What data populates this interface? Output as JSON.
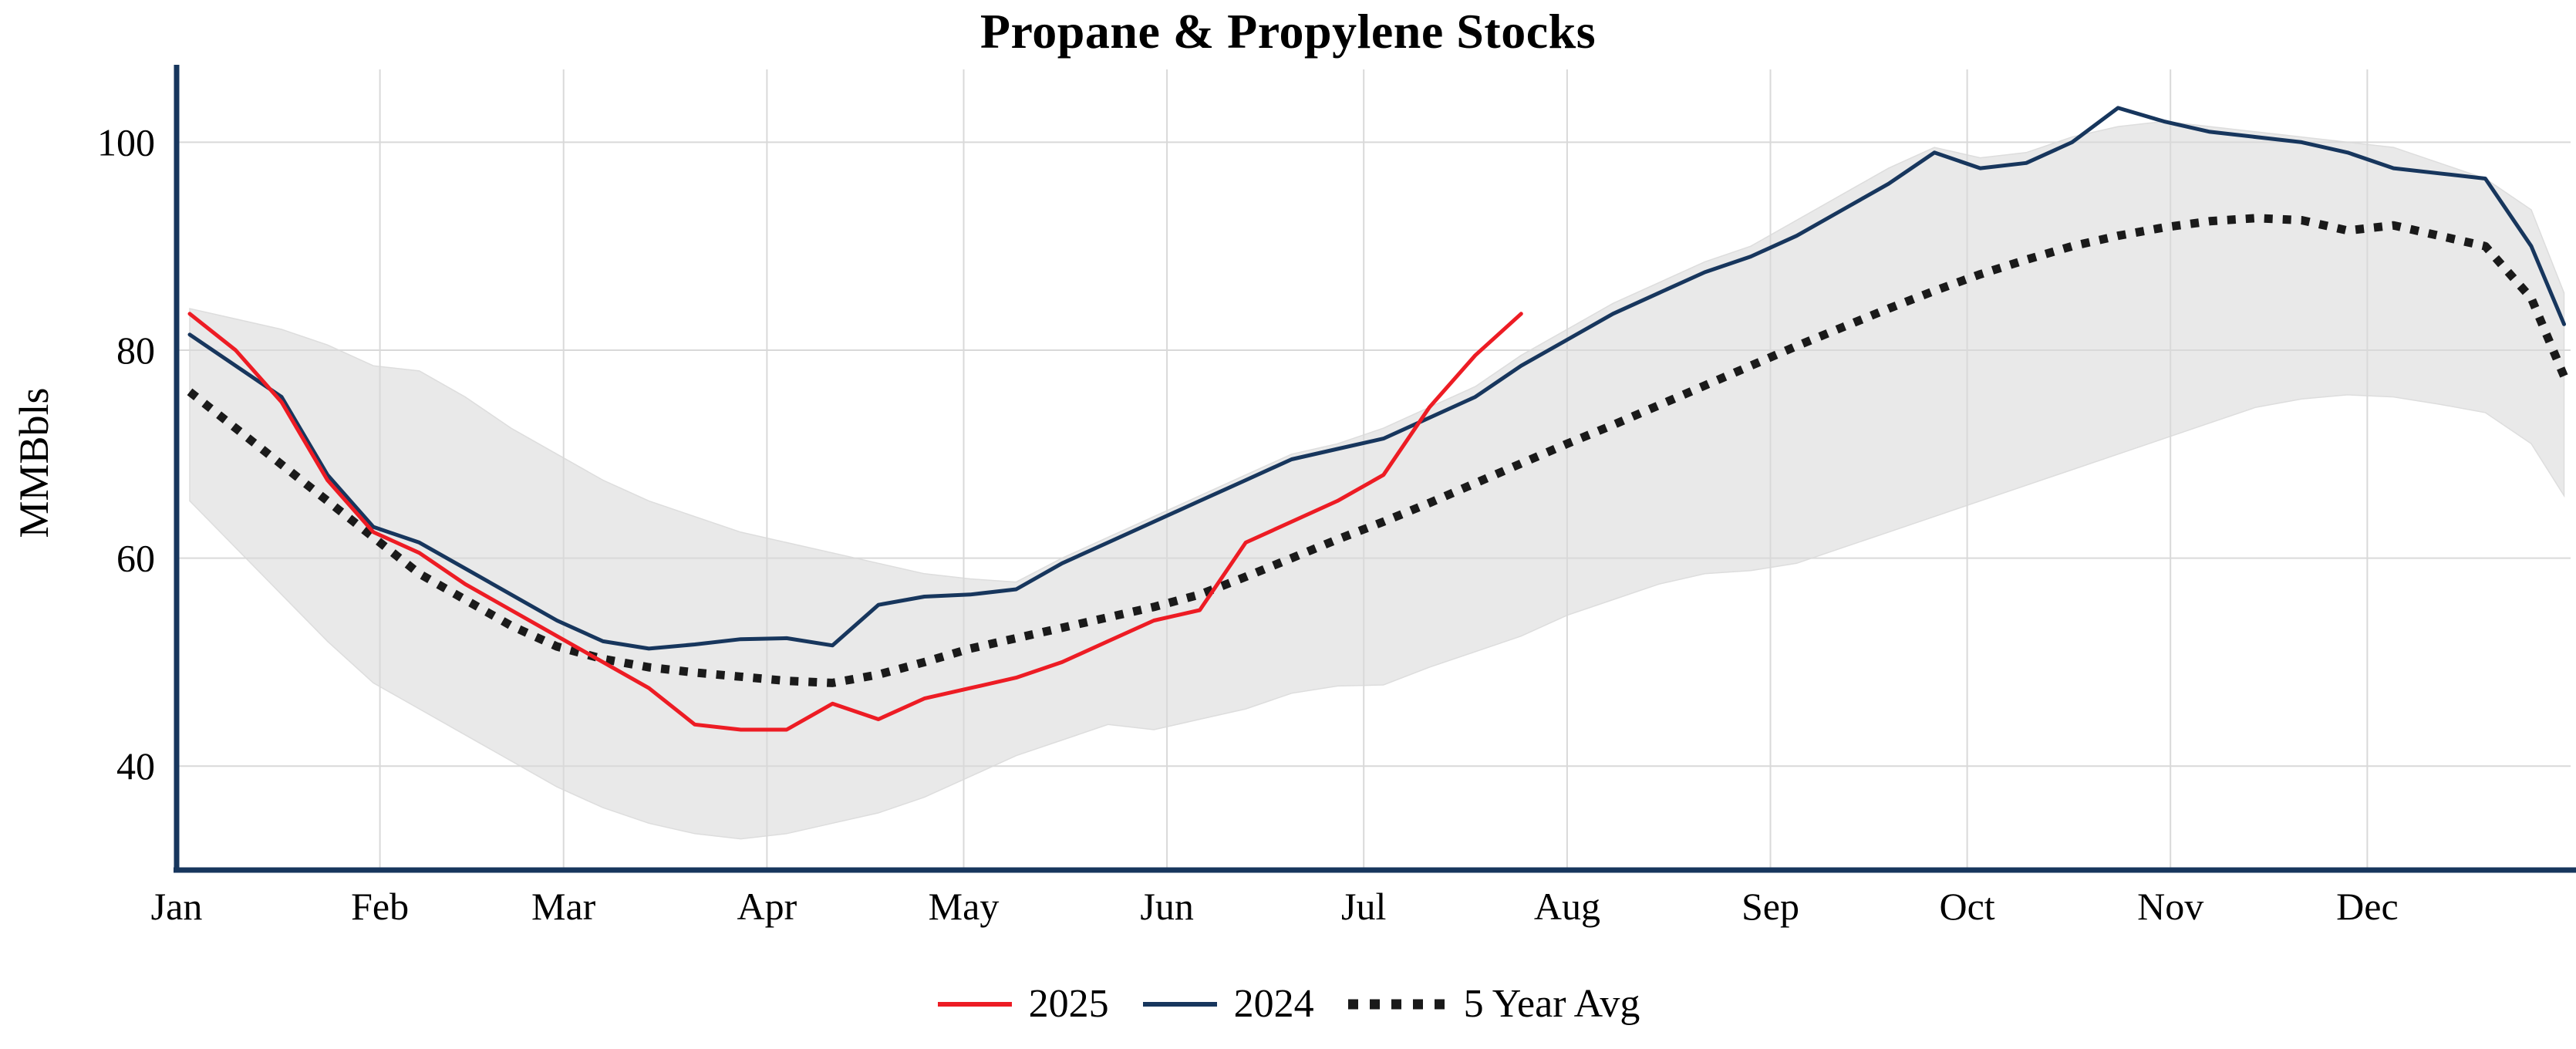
{
  "chart_data": {
    "type": "line",
    "title": "Propane & Propylene Stocks",
    "x_axis": {
      "tick_labels": [
        "Jan",
        "Feb",
        "Mar",
        "Apr",
        "May",
        "Jun",
        "Jul",
        "Aug",
        "Sep",
        "Oct",
        "Nov",
        "Dec"
      ],
      "tick_days": [
        1,
        32,
        60,
        91,
        121,
        152,
        182,
        213,
        244,
        274,
        305,
        335
      ],
      "start_day": 3,
      "step_days": 7,
      "xlim_days": [
        1,
        366
      ],
      "unit": "weekly data by day of year"
    },
    "y_axis": {
      "label": "MMBbls",
      "ticks": [
        40,
        60,
        80,
        100
      ],
      "ylim": [
        30,
        107
      ]
    },
    "grid": true,
    "legend_position": "bottom-center",
    "colors": {
      "axis": "#17365d",
      "grid": "#d9d9d9"
    },
    "band": {
      "fill": "#e9e9e9",
      "edge": "#dddddd",
      "upper": [
        84,
        83,
        82,
        80.5,
        78.5,
        78,
        75.5,
        72.5,
        70,
        67.5,
        65.5,
        64,
        62.5,
        61.5,
        60.5,
        59.5,
        58.5,
        58,
        57.7,
        60,
        62,
        64,
        66,
        68,
        70,
        71,
        72.5,
        74.5,
        76.5,
        79.5,
        82,
        84.5,
        86.5,
        88.5,
        90,
        92.5,
        95,
        97.5,
        99.5,
        98.5,
        99,
        100.5,
        101.5,
        102,
        101.5,
        101,
        100.5,
        100,
        99.5,
        98,
        96.5,
        93.5,
        85.5
      ],
      "lower": [
        65.5,
        61,
        56.5,
        52,
        48,
        45.5,
        43,
        40.5,
        38,
        36,
        34.5,
        33.5,
        33,
        33.5,
        34.5,
        35.5,
        37,
        39,
        41,
        42.5,
        44,
        43.5,
        44.5,
        45.5,
        47,
        47.7,
        47.8,
        49.5,
        51,
        52.5,
        54.5,
        56,
        57.5,
        58.5,
        58.8,
        59.5,
        61,
        62.5,
        64,
        65.5,
        67,
        68.5,
        70,
        71.5,
        73,
        74.5,
        75.3,
        75.7,
        75.5,
        74.8,
        74,
        71,
        66
      ]
    },
    "series": [
      {
        "name": "2025",
        "color": "#ed1c24",
        "style": "solid",
        "values": [
          83.5,
          80,
          75,
          67.5,
          62.5,
          60.5,
          57.5,
          55,
          52.5,
          50,
          47.5,
          44,
          43.5,
          43.5,
          46,
          44.5,
          46.5,
          47.5,
          48.5,
          50,
          52,
          54,
          55,
          61.5,
          63.5,
          65.5,
          68,
          74.5,
          79.5,
          83.5
        ]
      },
      {
        "name": "2024",
        "color": "#17365d",
        "style": "solid",
        "values": [
          81.5,
          78.5,
          75.5,
          68,
          63,
          61.5,
          59,
          56.5,
          54,
          52,
          51.3,
          51.7,
          52.2,
          52.3,
          51.6,
          55.5,
          56.3,
          56.5,
          57,
          59.5,
          61.5,
          63.5,
          65.5,
          67.5,
          69.5,
          70.5,
          71.5,
          73.5,
          75.5,
          78.5,
          81,
          83.5,
          85.5,
          87.5,
          89,
          91,
          93.5,
          96,
          99,
          97.5,
          98,
          100,
          103.3,
          102,
          101,
          100.5,
          100,
          99,
          97.5,
          97,
          96.5,
          90,
          82.5
        ]
      },
      {
        "name": "5 Year Avg",
        "color": "#1a1a1a",
        "style": "dotted",
        "values": [
          76,
          72.5,
          69,
          65.5,
          62,
          58.5,
          56,
          53.5,
          51.5,
          50.3,
          49.5,
          49,
          48.6,
          48.2,
          48,
          48.8,
          50,
          51.3,
          52.3,
          53.3,
          54.3,
          55.3,
          56.5,
          58.2,
          60,
          61.8,
          63.5,
          65.3,
          67.2,
          69.1,
          71,
          72.8,
          74.7,
          76.6,
          78.5,
          80.4,
          82.2,
          84,
          85.7,
          87.3,
          88.7,
          90,
          91,
          91.8,
          92.4,
          92.7,
          92.5,
          91.5,
          92,
          91,
          90,
          85,
          77.5
        ]
      }
    ]
  }
}
